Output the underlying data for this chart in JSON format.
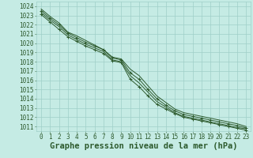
{
  "xlabel": "Graphe pression niveau de la mer (hPa)",
  "ylim": [
    1010.5,
    1024.5
  ],
  "xlim": [
    -0.5,
    23.5
  ],
  "yticks": [
    1011,
    1012,
    1013,
    1014,
    1015,
    1016,
    1017,
    1018,
    1019,
    1020,
    1021,
    1022,
    1023,
    1024
  ],
  "xticks": [
    0,
    1,
    2,
    3,
    4,
    5,
    6,
    7,
    8,
    9,
    10,
    11,
    12,
    13,
    14,
    15,
    16,
    17,
    18,
    19,
    20,
    21,
    22,
    23
  ],
  "background_color": "#c5ebe4",
  "grid_color": "#9fcfc8",
  "line_color": "#2d5a2d",
  "figsize": [
    3.2,
    2.0
  ],
  "dpi": 100,
  "tick_fontsize": 5.5,
  "xlabel_fontsize": 7.5,
  "font_family": "monospace",
  "series": [
    [
      1023.7,
      1022.9,
      1022.2,
      1021.2,
      1020.8,
      1020.3,
      1019.8,
      1019.3,
      1018.5,
      1018.3,
      1017.2,
      1016.5,
      1015.4,
      1014.3,
      1013.6,
      1012.9,
      1012.5,
      1012.3,
      1012.1,
      1011.9,
      1011.7,
      1011.5,
      1011.3,
      1011.0
    ],
    [
      1023.5,
      1022.7,
      1022.0,
      1021.1,
      1020.6,
      1020.1,
      1019.7,
      1019.3,
      1018.4,
      1018.2,
      1016.8,
      1016.1,
      1015.0,
      1014.0,
      1013.3,
      1012.7,
      1012.3,
      1012.1,
      1011.9,
      1011.7,
      1011.5,
      1011.3,
      1011.1,
      1010.85
    ],
    [
      1023.3,
      1022.5,
      1021.8,
      1020.9,
      1020.4,
      1019.9,
      1019.5,
      1019.1,
      1018.2,
      1018.0,
      1016.5,
      1015.7,
      1014.7,
      1013.7,
      1013.1,
      1012.5,
      1012.1,
      1011.9,
      1011.7,
      1011.5,
      1011.3,
      1011.1,
      1010.9,
      1010.75
    ],
    [
      1023.1,
      1022.3,
      1021.5,
      1020.7,
      1020.2,
      1019.7,
      1019.3,
      1018.9,
      1018.1,
      1017.9,
      1016.1,
      1015.3,
      1014.3,
      1013.4,
      1012.9,
      1012.4,
      1012.0,
      1011.8,
      1011.6,
      1011.4,
      1011.2,
      1011.0,
      1010.8,
      1010.6
    ]
  ],
  "marker_series": [
    1,
    3
  ]
}
